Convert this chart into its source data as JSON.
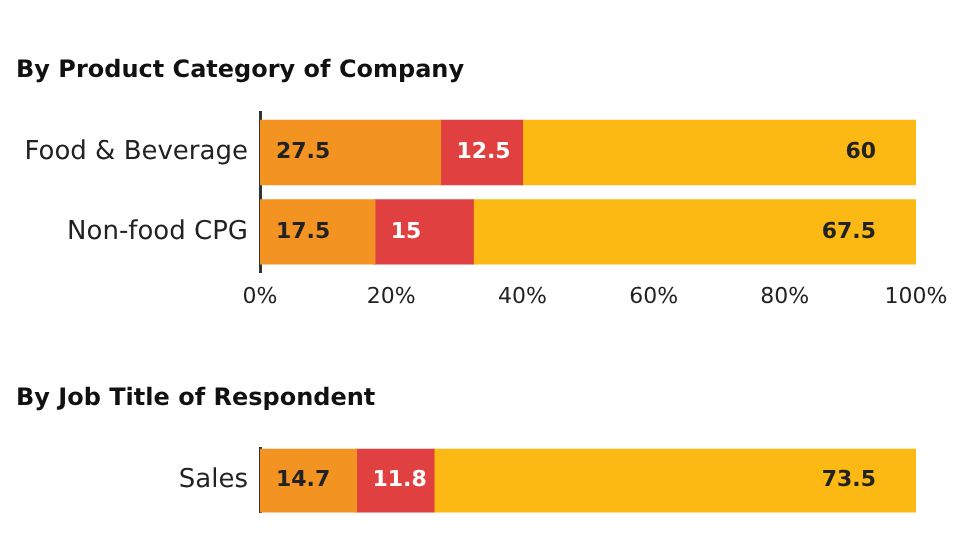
{
  "chart_data": [
    {
      "type": "bar",
      "title": "By Product Category of Company",
      "orientation": "horizontal",
      "stacked": true,
      "categories": [
        "Food & Beverage",
        "Non-food CPG"
      ],
      "series": [
        {
          "color": "#f39322",
          "values": [
            27.5,
            17.5
          ]
        },
        {
          "color": "#e0403f",
          "values": [
            12.5,
            15
          ]
        },
        {
          "color": "#fdb913",
          "values": [
            60,
            67.5
          ]
        }
      ],
      "xlim": [
        0,
        100
      ],
      "xticks": [
        {
          "value": 0,
          "label": "0%"
        },
        {
          "value": 20,
          "label": "20%"
        },
        {
          "value": 40,
          "label": "40%"
        },
        {
          "value": 60,
          "label": "60%"
        },
        {
          "value": 80,
          "label": "80%"
        },
        {
          "value": 100,
          "label": "100%"
        }
      ],
      "grid": false,
      "legend": false,
      "data_labels": true
    },
    {
      "type": "bar",
      "title": "By Job Title of Respondent",
      "orientation": "horizontal",
      "stacked": true,
      "categories": [
        "Sales"
      ],
      "series": [
        {
          "color": "#f39322",
          "values": [
            14.7
          ]
        },
        {
          "color": "#e0403f",
          "values": [
            11.8
          ]
        },
        {
          "color": "#fdb913",
          "values": [
            73.5
          ]
        }
      ],
      "xlim": [
        0,
        100
      ],
      "tick_labels": "y",
      "grid": false,
      "legend": false,
      "data_labels": true
    }
  ]
}
